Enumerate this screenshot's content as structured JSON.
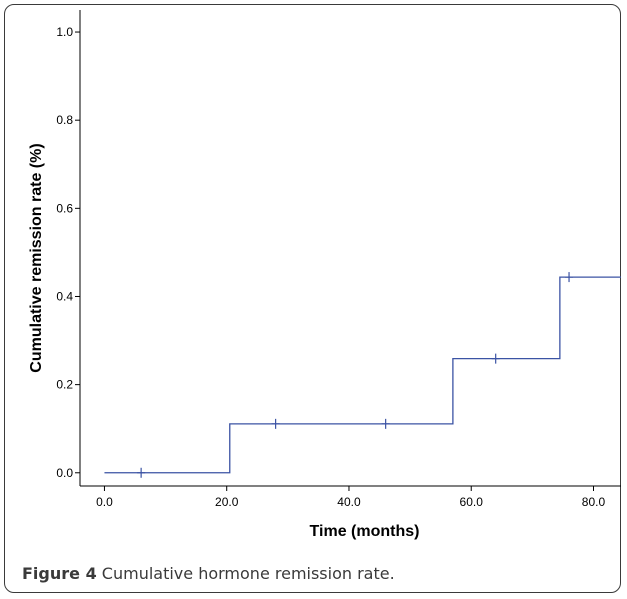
{
  "chart_data": {
    "type": "line",
    "xlabel": "Time (months)",
    "ylabel": "Cumulative remission rate (%)",
    "xlim": [
      -4,
      84.5
    ],
    "ylim": [
      -0.03,
      1.05
    ],
    "x_ticks": [
      0,
      20,
      40,
      60,
      80
    ],
    "x_tick_labels": [
      "0.0",
      "20.0",
      "40.0",
      "60.0",
      "80.0"
    ],
    "y_ticks": [
      0,
      0.2,
      0.4,
      0.6,
      0.8,
      1.0
    ],
    "y_tick_labels": [
      "0.0",
      "0.2",
      "0.4",
      "0.6",
      "0.8",
      "1.0"
    ],
    "grid": false,
    "series": [
      {
        "step": true,
        "color": "#3b53a4",
        "points": [
          {
            "x": 0,
            "y": 0
          },
          {
            "x": 20.5,
            "y": 0.111
          },
          {
            "x": 57,
            "y": 0.259
          },
          {
            "x": 74.5,
            "y": 0.444
          },
          {
            "x": 84.5,
            "y": 0.444
          }
        ],
        "censored": [
          {
            "x": 6,
            "y": 0
          },
          {
            "x": 28,
            "y": 0.111
          },
          {
            "x": 46,
            "y": 0.111
          },
          {
            "x": 64,
            "y": 0.259
          },
          {
            "x": 76,
            "y": 0.444
          }
        ]
      }
    ]
  },
  "caption": {
    "label": "Figure 4",
    "text": " Cumulative hormone remission rate",
    "end": "."
  }
}
